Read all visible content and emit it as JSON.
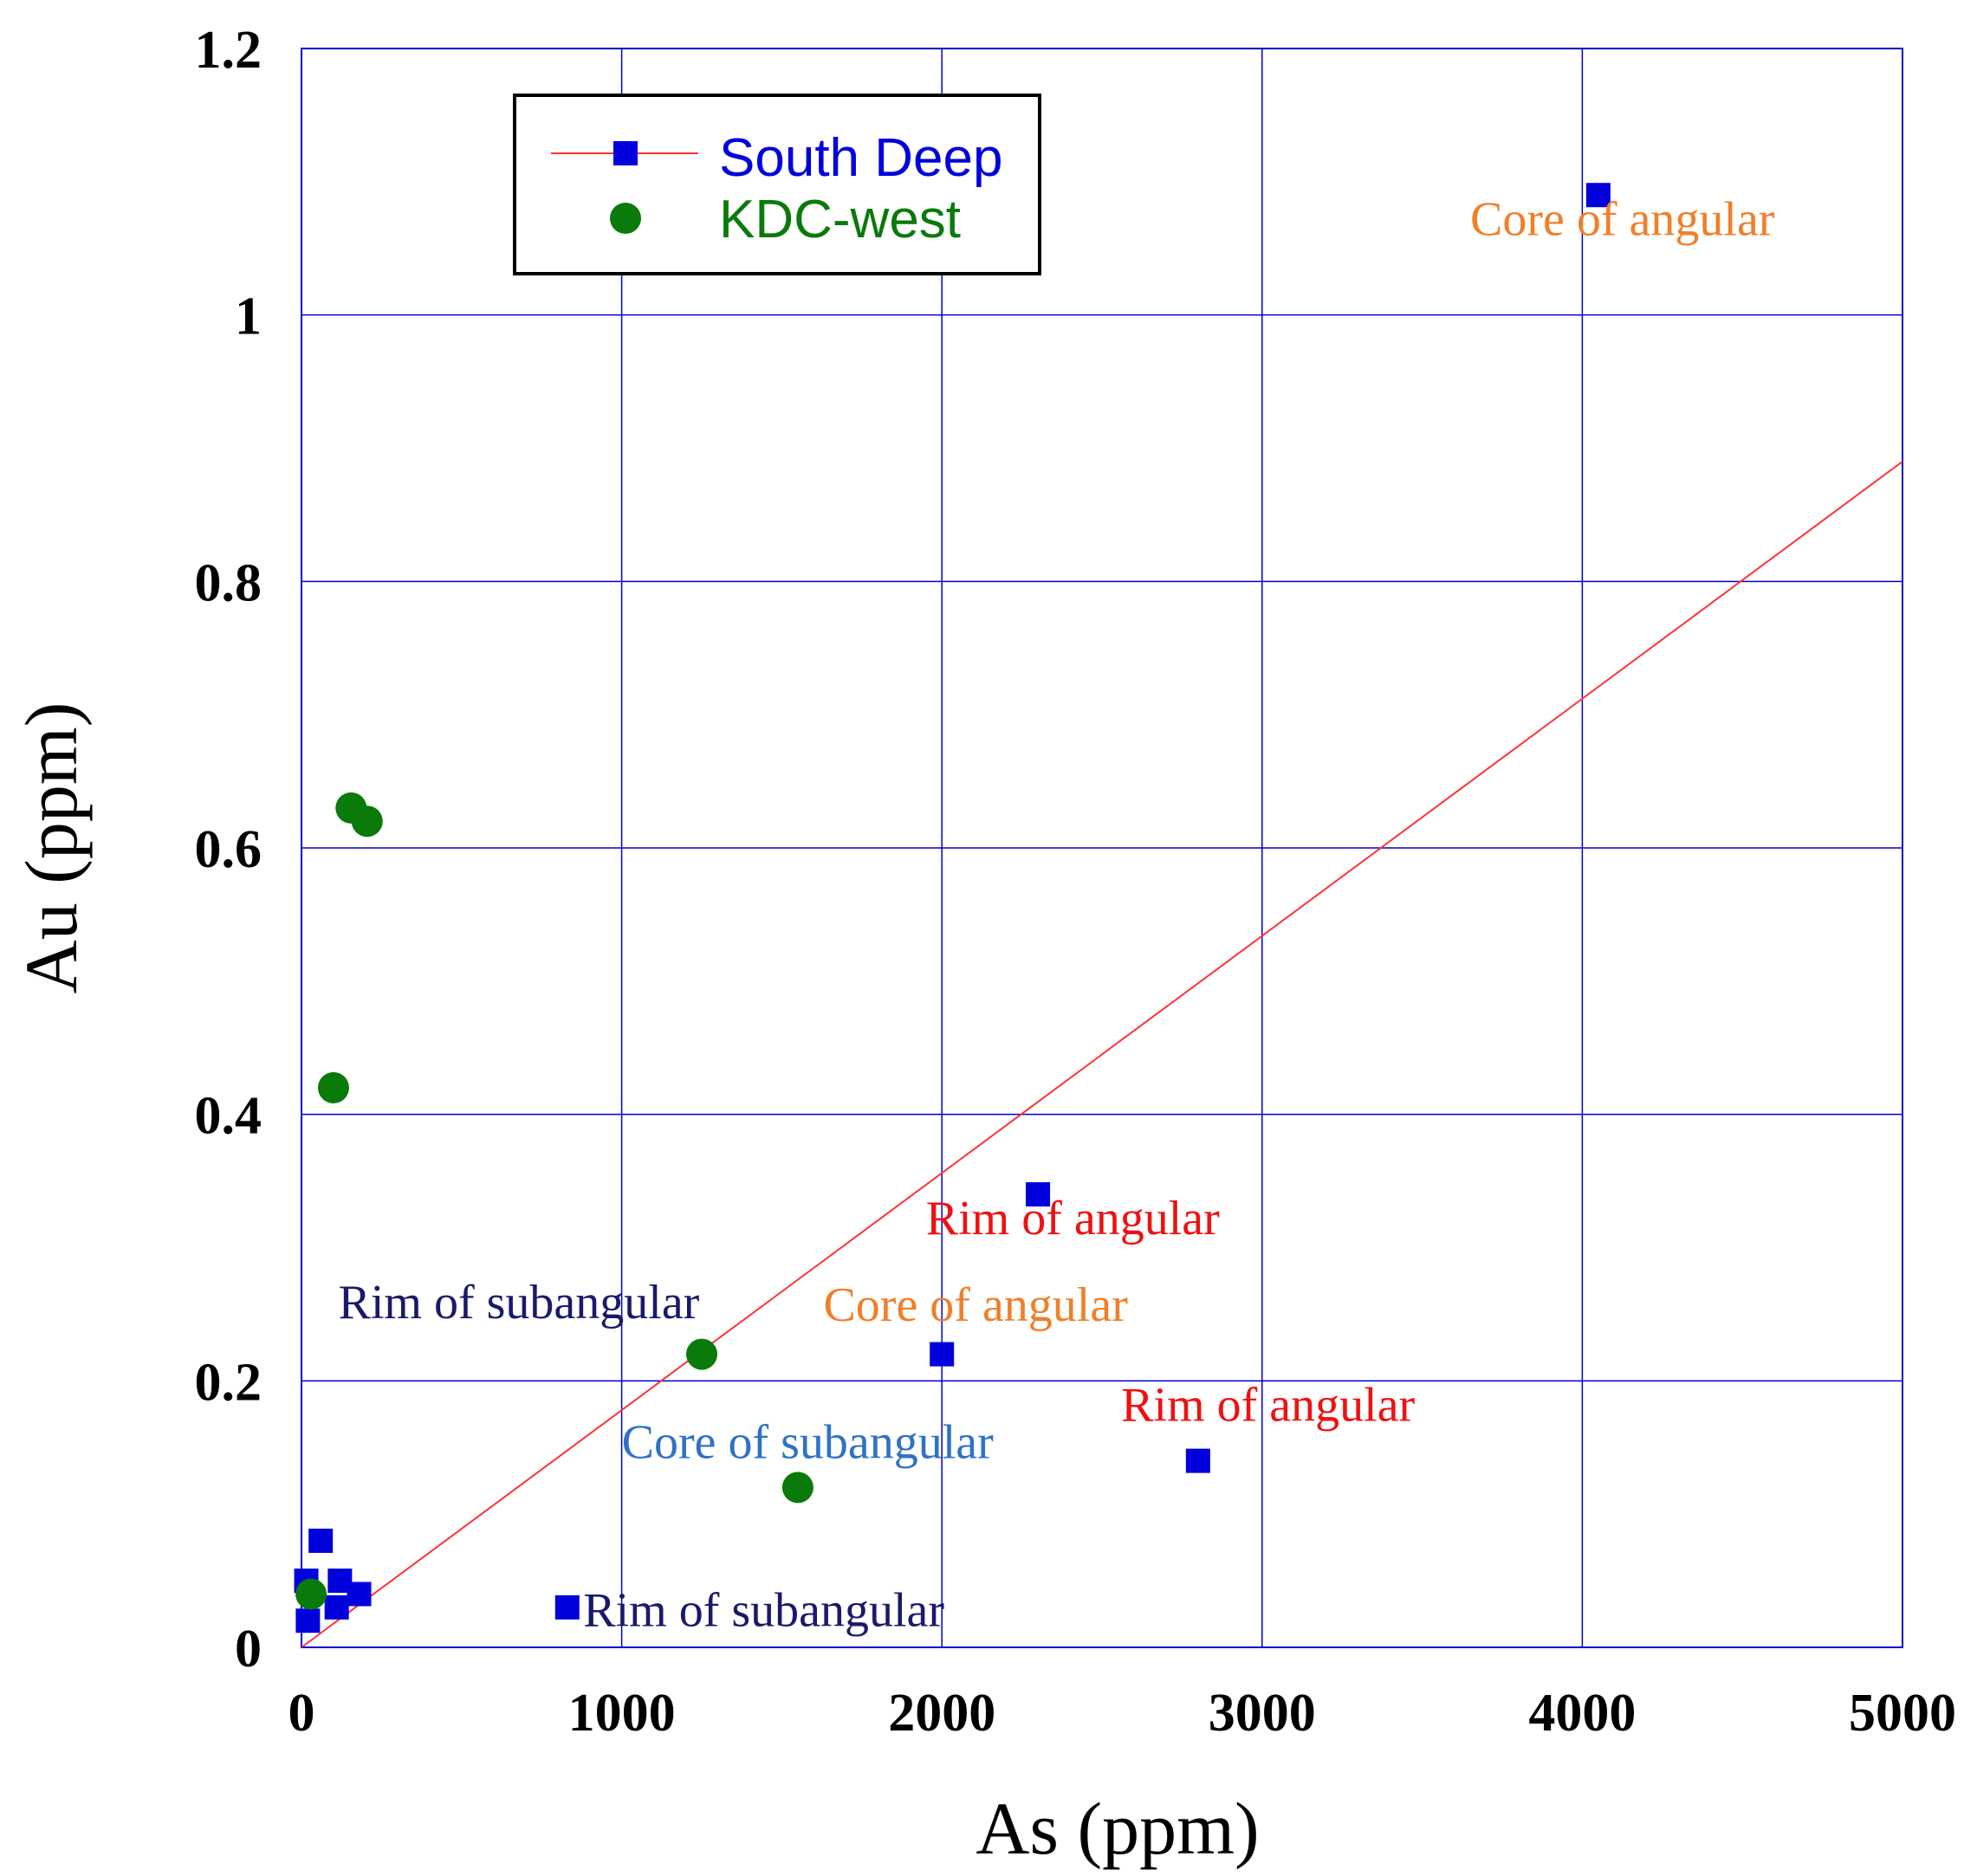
{
  "chart_data": {
    "type": "scatter",
    "xlabel": "As (ppm)",
    "ylabel": "Au (ppm)",
    "xlim": [
      0,
      5000
    ],
    "ylim": [
      0,
      1.2
    ],
    "xticks": [
      {
        "value": 0,
        "label": "0"
      },
      {
        "value": 1000,
        "label": "1000"
      },
      {
        "value": 2000,
        "label": "2000"
      },
      {
        "value": 3000,
        "label": "3000"
      },
      {
        "value": 4000,
        "label": "4000"
      },
      {
        "value": 5000,
        "label": "5000"
      }
    ],
    "yticks": [
      {
        "value": 0,
        "label": "0"
      },
      {
        "value": 0.2,
        "label": "0.2"
      },
      {
        "value": 0.4,
        "label": "0.4"
      },
      {
        "value": 0.6,
        "label": "0.6"
      },
      {
        "value": 0.8,
        "label": "0.8"
      },
      {
        "value": 1.0,
        "label": "1"
      },
      {
        "value": 1.2,
        "label": "1.2"
      }
    ],
    "grid": true,
    "legend_position": "top-left",
    "series": [
      {
        "name": "South Deep",
        "marker": "square",
        "color": "#0000dd",
        "label_color": "#0000dd",
        "points": [
          {
            "x": 20,
            "y": 0.02
          },
          {
            "x": 15,
            "y": 0.05
          },
          {
            "x": 60,
            "y": 0.08
          },
          {
            "x": 110,
            "y": 0.03
          },
          {
            "x": 120,
            "y": 0.05
          },
          {
            "x": 180,
            "y": 0.04
          },
          {
            "x": 830,
            "y": 0.03
          },
          {
            "x": 2000,
            "y": 0.22
          },
          {
            "x": 2300,
            "y": 0.34
          },
          {
            "x": 2800,
            "y": 0.14
          },
          {
            "x": 4050,
            "y": 1.09
          }
        ]
      },
      {
        "name": "KDC-west",
        "marker": "circle",
        "color": "#0a7a0a",
        "label_color": "#0a7a0a",
        "points": [
          {
            "x": 30,
            "y": 0.04
          },
          {
            "x": 100,
            "y": 0.42
          },
          {
            "x": 155,
            "y": 0.63
          },
          {
            "x": 205,
            "y": 0.62
          },
          {
            "x": 1250,
            "y": 0.22
          },
          {
            "x": 1550,
            "y": 0.12
          }
        ]
      }
    ],
    "trendline": {
      "series": "South Deep",
      "color": "#ff3333",
      "x": [
        0,
        5000
      ],
      "y": [
        0.0,
        0.89
      ]
    },
    "annotations": [
      {
        "text": "Core of angular",
        "x": 3650,
        "y": 1.06,
        "color": "#f07f2a"
      },
      {
        "text": "Rim of angular",
        "x": 1950,
        "y": 0.31,
        "color": "#ee1111"
      },
      {
        "text": "Core of angular",
        "x": 1630,
        "y": 0.245,
        "color": "#f07f2a"
      },
      {
        "text": "Rim of subangular",
        "x": 115,
        "y": 0.247,
        "color": "#1a1a6a"
      },
      {
        "text": "Rim of angular",
        "x": 2560,
        "y": 0.17,
        "color": "#ee1111"
      },
      {
        "text": "Core of subangular",
        "x": 1000,
        "y": 0.142,
        "color": "#2e72c4"
      },
      {
        "text": "Rim of subangular",
        "x": 880,
        "y": 0.016,
        "color": "#1a1a6a"
      }
    ]
  }
}
